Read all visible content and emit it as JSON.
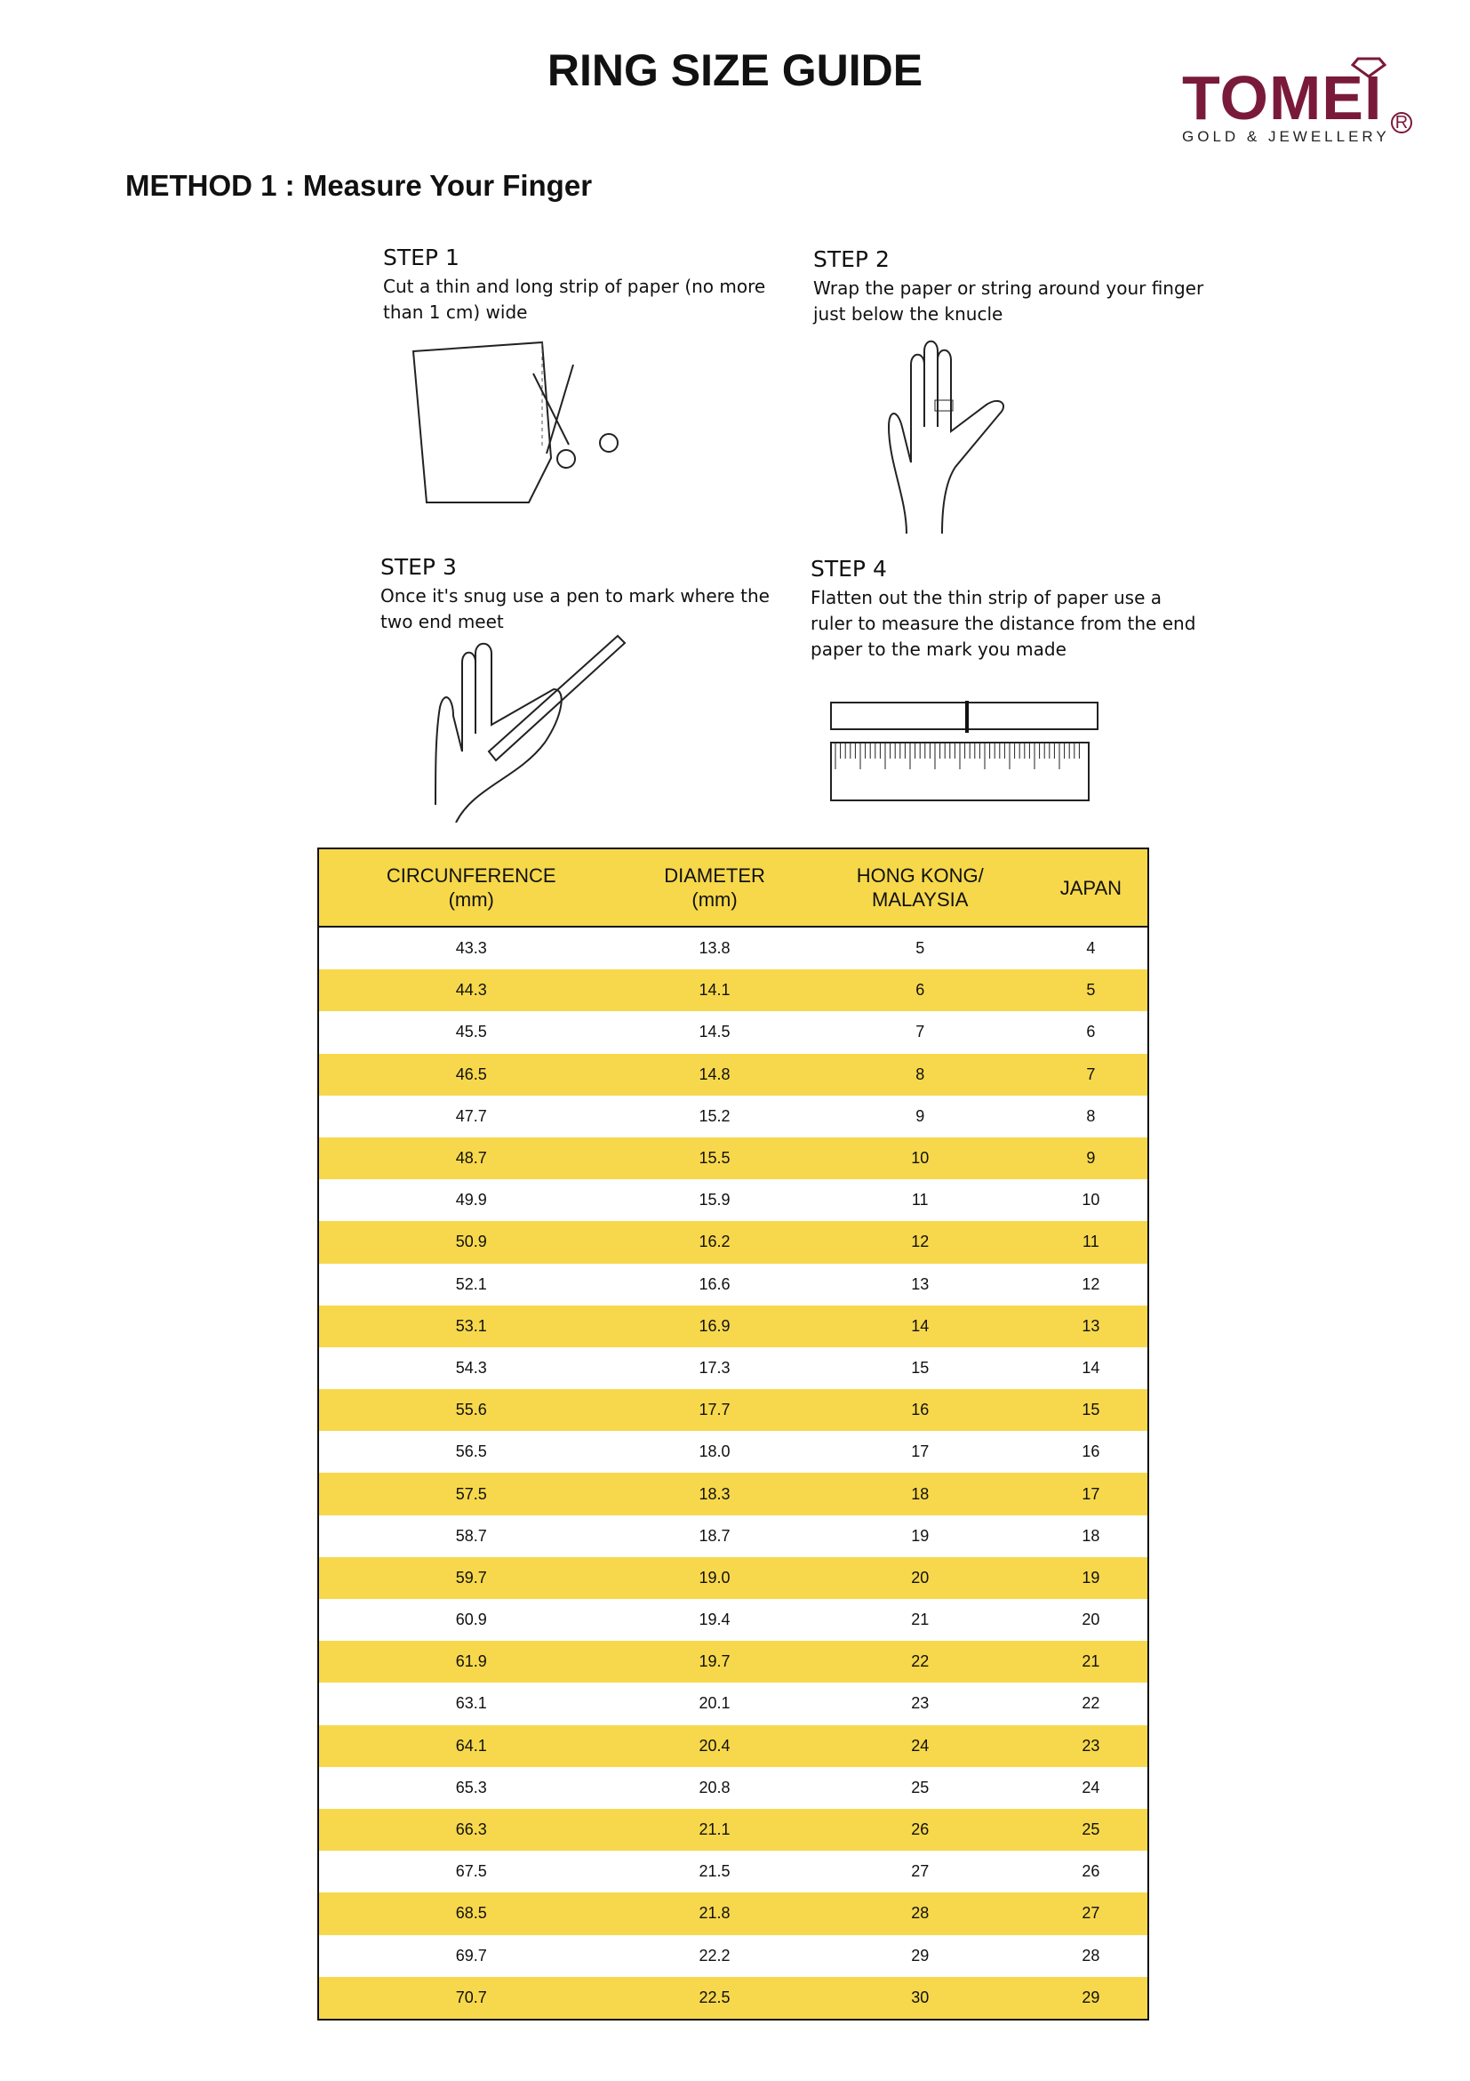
{
  "title": "RING SIZE GUIDE",
  "logo": {
    "word": "TOMEI",
    "reg": "R",
    "tagline": "GOLD & JEWELLERY",
    "color": "#7a1a3a"
  },
  "method": "METHOD 1 : Measure Your Finger",
  "steps": [
    {
      "title": "STEP 1",
      "text": "Cut a thin and long strip of paper (no more than 1 cm) wide",
      "icon": "paper-scissors-illustration"
    },
    {
      "title": "STEP 2",
      "text": "Wrap the paper or string around your finger just below the knucle",
      "icon": "hand-wrap-illustration"
    },
    {
      "title": "STEP 3",
      "text": "Once it's snug use a pen to mark where the two end meet",
      "icon": "hand-pen-illustration"
    },
    {
      "title": "STEP 4",
      "text": "Flatten out the thin strip of paper use a ruler to measure the distance from the end paper to the mark you made",
      "icon": "ruler-illustration"
    }
  ],
  "table": {
    "accent": "#f6d84a",
    "headers": [
      [
        "CIRCUNFERENCE",
        "(mm)"
      ],
      [
        "DIAMETER",
        "(mm)"
      ],
      [
        "HONG KONG/",
        "MALAYSIA"
      ],
      [
        "JAPAN",
        ""
      ]
    ],
    "rows": [
      [
        "43.3",
        "13.8",
        "5",
        "4"
      ],
      [
        "44.3",
        "14.1",
        "6",
        "5"
      ],
      [
        "45.5",
        "14.5",
        "7",
        "6"
      ],
      [
        "46.5",
        "14.8",
        "8",
        "7"
      ],
      [
        "47.7",
        "15.2",
        "9",
        "8"
      ],
      [
        "48.7",
        "15.5",
        "10",
        "9"
      ],
      [
        "49.9",
        "15.9",
        "11",
        "10"
      ],
      [
        "50.9",
        "16.2",
        "12",
        "11"
      ],
      [
        "52.1",
        "16.6",
        "13",
        "12"
      ],
      [
        "53.1",
        "16.9",
        "14",
        "13"
      ],
      [
        "54.3",
        "17.3",
        "15",
        "14"
      ],
      [
        "55.6",
        "17.7",
        "16",
        "15"
      ],
      [
        "56.5",
        "18.0",
        "17",
        "16"
      ],
      [
        "57.5",
        "18.3",
        "18",
        "17"
      ],
      [
        "58.7",
        "18.7",
        "19",
        "18"
      ],
      [
        "59.7",
        "19.0",
        "20",
        "19"
      ],
      [
        "60.9",
        "19.4",
        "21",
        "20"
      ],
      [
        "61.9",
        "19.7",
        "22",
        "21"
      ],
      [
        "63.1",
        "20.1",
        "23",
        "22"
      ],
      [
        "64.1",
        "20.4",
        "24",
        "23"
      ],
      [
        "65.3",
        "20.8",
        "25",
        "24"
      ],
      [
        "66.3",
        "21.1",
        "26",
        "25"
      ],
      [
        "67.5",
        "21.5",
        "27",
        "26"
      ],
      [
        "68.5",
        "21.8",
        "28",
        "27"
      ],
      [
        "69.7",
        "22.2",
        "29",
        "28"
      ],
      [
        "70.7",
        "22.5",
        "30",
        "29"
      ]
    ]
  }
}
